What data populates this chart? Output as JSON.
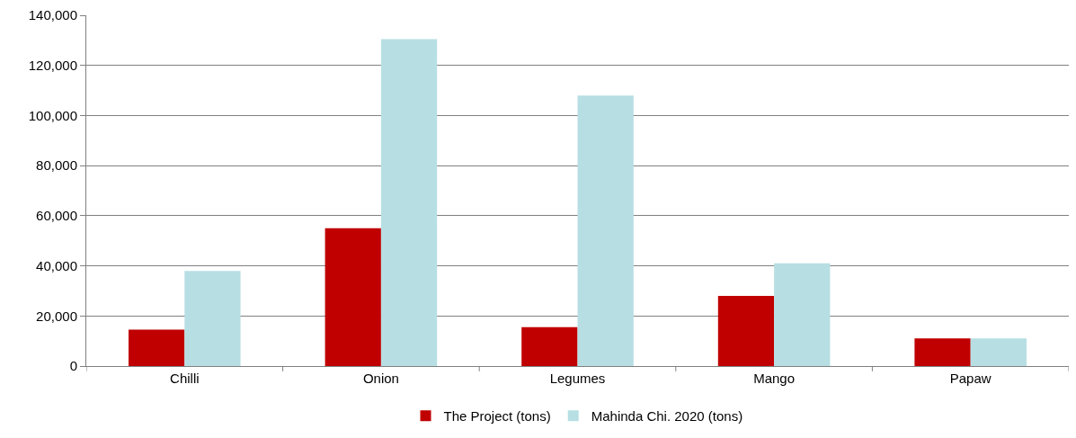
{
  "chart_data": {
    "type": "bar",
    "categories": [
      "Chilli",
      "Onion",
      "Legumes",
      "Mango",
      "Papaw"
    ],
    "series": [
      {
        "name": "The Project (tons)",
        "color": "#c00000",
        "values": [
          14500,
          55000,
          15500,
          28000,
          11000
        ]
      },
      {
        "name": "Mahinda Chi. 2020 (tons)",
        "color": "#b7dfe3",
        "values": [
          38000,
          130500,
          108000,
          41000,
          11000
        ]
      }
    ],
    "ylim": [
      0,
      140000
    ],
    "yticks": [
      0,
      {
        "value": 20000,
        "label": "20,000"
      },
      {
        "value": 40000,
        "label": "40,000"
      },
      {
        "value": 60000,
        "label": "60,000"
      },
      {
        "value": 80000,
        "label": "80,000"
      },
      {
        "value": 100000,
        "label": "100,000"
      },
      {
        "value": 120000,
        "label": "120,000"
      },
      {
        "value": 140000,
        "label": "140,000"
      }
    ],
    "grid": "y",
    "legend": "bottom"
  }
}
